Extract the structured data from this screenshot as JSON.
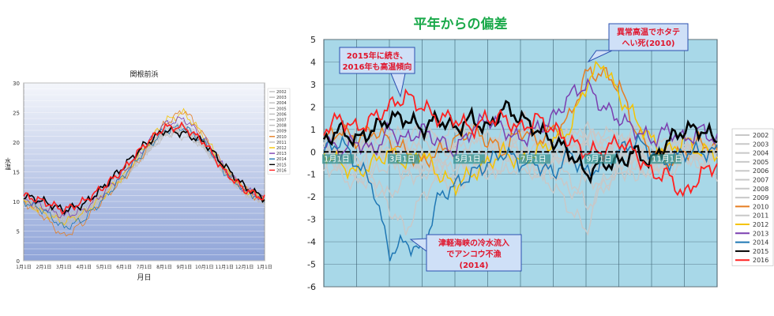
{
  "chart_data": [
    {
      "type": "line",
      "title": "関根前浜",
      "xlabel": "月日",
      "ylabel": "水温",
      "ylim": [
        0,
        30
      ],
      "yticks": [
        "0",
        "5",
        "10",
        "15",
        "20",
        "25",
        "30"
      ],
      "xticks": [
        "1月1日",
        "2月1日",
        "3月1日",
        "4月1日",
        "5月1日",
        "6月1日",
        "7月1日",
        "8月1日",
        "9月1日",
        "10月1日",
        "11月1日",
        "12月1日",
        "1月1日"
      ],
      "grid": true,
      "legend_position": "right",
      "series": [
        {
          "name": "2002",
          "color": "#bdbdbd",
          "values": [
            10,
            9,
            7.5,
            8.5,
            11,
            14,
            18,
            21,
            22.5,
            20,
            15,
            11.5,
            10
          ]
        },
        {
          "name": "2003",
          "color": "#bdbdbd",
          "values": [
            10.5,
            8.5,
            6,
            8,
            11,
            14.5,
            18.5,
            21.5,
            21,
            19.5,
            15.5,
            12,
            10.5
          ]
        },
        {
          "name": "2004",
          "color": "#bdbdbd",
          "values": [
            10,
            9,
            7,
            8.5,
            12,
            15,
            19,
            23,
            23,
            20,
            15,
            12,
            10.5
          ]
        },
        {
          "name": "2005",
          "color": "#bdbdbd",
          "values": [
            10,
            8.5,
            6.5,
            8,
            11.5,
            14.5,
            18,
            22,
            22.5,
            19.5,
            15,
            11.5,
            10
          ]
        },
        {
          "name": "2006",
          "color": "#bdbdbd",
          "values": [
            10.5,
            9,
            7,
            8,
            11,
            14,
            18,
            21.5,
            23,
            20,
            15.5,
            12,
            10.5
          ]
        },
        {
          "name": "2007",
          "color": "#bdbdbd",
          "values": [
            10,
            8.5,
            7,
            8.5,
            11.5,
            15,
            18.5,
            22,
            22,
            19.5,
            15,
            12,
            10
          ]
        },
        {
          "name": "2008",
          "color": "#bdbdbd",
          "values": [
            10,
            8,
            6.5,
            8,
            11,
            14.5,
            18,
            21.5,
            22.5,
            19.5,
            15,
            11.5,
            10
          ]
        },
        {
          "name": "2009",
          "color": "#bdbdbd",
          "values": [
            10.5,
            9,
            7.5,
            8.5,
            11.5,
            14.5,
            18.5,
            22,
            22,
            19.5,
            15.5,
            12,
            10.5
          ]
        },
        {
          "name": "2010",
          "color": "#e67e22",
          "values": [
            10,
            7.5,
            4,
            6.5,
            10.5,
            14,
            18,
            23,
            25.5,
            21,
            15.5,
            12,
            10
          ]
        },
        {
          "name": "2011",
          "color": "#bdbdbd",
          "values": [
            10,
            8,
            6,
            7.5,
            11,
            14,
            18,
            22,
            22,
            19,
            15,
            11.5,
            10
          ]
        },
        {
          "name": "2012",
          "color": "#f5c400",
          "values": [
            10,
            8,
            6.5,
            8,
            11,
            14.5,
            19,
            23.5,
            25,
            21,
            15.5,
            12,
            10.5
          ]
        },
        {
          "name": "2013",
          "color": "#7b3fb0",
          "values": [
            10.5,
            9,
            7.5,
            8.5,
            11.5,
            15,
            19,
            23,
            24,
            20.5,
            15.5,
            12,
            10.5
          ]
        },
        {
          "name": "2014",
          "color": "#1f77b4",
          "values": [
            10,
            8.5,
            5.5,
            7,
            10.5,
            14.5,
            18.5,
            22,
            22.5,
            20,
            15,
            12,
            10
          ]
        },
        {
          "name": "2015",
          "color": "#000000",
          "values": [
            11,
            10,
            8.5,
            9.5,
            12.5,
            16,
            19.5,
            22,
            21.5,
            20,
            16,
            12.5,
            10.5
          ]
        },
        {
          "name": "2016",
          "color": "#ff2020",
          "values": [
            11,
            10,
            8.5,
            10,
            12.5,
            15.5,
            19.5,
            22.5,
            22.5,
            20,
            15,
            12,
            10.5
          ]
        }
      ]
    },
    {
      "type": "line",
      "title": "平年からの偏差",
      "xlabel": "",
      "ylabel": "",
      "ylim": [
        -6,
        5
      ],
      "yticks": [
        "5",
        "4",
        "3",
        "2",
        "1",
        "0",
        "-1",
        "-2",
        "-3",
        "-4",
        "-5",
        "-6"
      ],
      "xticks": [
        "1月1日",
        "3月1日",
        "5月1日",
        "7月1日",
        "9月1日",
        "11月1日"
      ],
      "grid": true,
      "legend_position": "right",
      "annotations": [
        {
          "id": "ann1",
          "text": [
            "2015年に続き、",
            "2016年も高温傾向"
          ]
        },
        {
          "id": "ann2",
          "text": [
            "異常高温でホタテ",
            "へい死(2010)"
          ]
        },
        {
          "id": "ann3",
          "text": [
            "津軽海峡の冷水流入",
            "でアンコウ不漁",
            "(2014)"
          ]
        }
      ],
      "series": [
        {
          "name": "2002",
          "color": "#c8c8c8",
          "values": [
            0,
            -0.5,
            -1,
            -1.5,
            -2,
            -1,
            -1,
            -0.5,
            -1,
            -0.5,
            -1,
            0,
            -0.5,
            -1,
            -0.5,
            0,
            0.5,
            0.5,
            -0.5,
            -1,
            -0.5,
            -1,
            -0.5,
            0.5,
            0
          ]
        },
        {
          "name": "2003",
          "color": "#c8c8c8",
          "values": [
            0.5,
            1,
            0.5,
            -1,
            -2.5,
            -3.5,
            -2,
            -1,
            -1.5,
            -1,
            -0.5,
            0.5,
            0,
            -1,
            -0.5,
            -2,
            -1,
            -1.5,
            -0.5,
            0,
            -0.5,
            -1,
            0,
            0.5,
            0
          ]
        },
        {
          "name": "2004",
          "color": "#c8c8c8",
          "values": [
            0,
            0.5,
            1,
            0.5,
            0,
            0.5,
            1,
            0.5,
            1,
            1,
            0.5,
            1,
            1.5,
            1,
            0.5,
            1,
            0.5,
            0,
            0.5,
            1,
            0.5,
            0,
            0.5,
            0,
            0.5
          ]
        },
        {
          "name": "2005",
          "color": "#c8c8c8",
          "values": [
            -0.5,
            0,
            -0.5,
            0.5,
            0,
            -0.5,
            0,
            -1,
            -0.5,
            0,
            -0.5,
            0,
            -0.5,
            0,
            0.5,
            0,
            -1,
            -0.5,
            0,
            0.5,
            0,
            -0.5,
            0,
            0,
            0
          ]
        },
        {
          "name": "2006",
          "color": "#c8c8c8",
          "values": [
            0.5,
            0,
            0.5,
            0,
            -0.5,
            0,
            0.5,
            0,
            0,
            0.5,
            0,
            0.5,
            0,
            1,
            0,
            0.5,
            1,
            0.5,
            0,
            -0.5,
            0,
            0.5,
            0,
            -0.5,
            0
          ]
        },
        {
          "name": "2007",
          "color": "#c8c8c8",
          "values": [
            0,
            -0.5,
            0,
            0.5,
            1,
            0.5,
            0,
            0.5,
            0,
            -0.5,
            0,
            0.5,
            1,
            0.5,
            0,
            -0.5,
            0.5,
            0,
            0.5,
            0,
            -0.5,
            0,
            0.5,
            0,
            0
          ]
        },
        {
          "name": "2008",
          "color": "#c8c8c8",
          "values": [
            -0.5,
            -1,
            -1.5,
            -1,
            -0.5,
            -1,
            -0.5,
            -1,
            -1.5,
            -1,
            -0.5,
            -1,
            -0.5,
            -1,
            -1.5,
            -2.5,
            -3.5,
            -1.5,
            -1,
            -0.5,
            -1,
            -0.5,
            0,
            -0.5,
            -1
          ]
        },
        {
          "name": "2009",
          "color": "#c8c8c8",
          "values": [
            0.5,
            0,
            -0.5,
            0,
            0.5,
            0,
            -0.5,
            0,
            0.5,
            1,
            0.5,
            0,
            0.5,
            0,
            -0.5,
            0,
            0.5,
            1,
            0.5,
            0,
            -0.5,
            0,
            0.5,
            0,
            0
          ]
        },
        {
          "name": "2010",
          "color": "#e67e22",
          "values": [
            0.5,
            1,
            0.5,
            1,
            0.5,
            0,
            -0.5,
            0,
            0.5,
            1,
            0.5,
            0,
            1,
            0.5,
            1,
            1.5,
            3.5,
            3.5,
            3,
            1,
            0,
            -0.5,
            0,
            0.5,
            0
          ]
        },
        {
          "name": "2011",
          "color": "#c8c8c8",
          "values": [
            0,
            -0.5,
            -1,
            -0.5,
            0,
            -0.5,
            -1,
            -0.5,
            0,
            -0.5,
            -1,
            -0.5,
            0,
            -0.5,
            -1,
            -1,
            -2.5,
            -1.5,
            -1,
            -0.5,
            -1,
            -0.5,
            0,
            -0.5,
            0
          ]
        },
        {
          "name": "2012",
          "color": "#f5c400",
          "values": [
            0,
            -0.5,
            -1,
            -0.5,
            0,
            -0.5,
            0,
            -1,
            -1.5,
            -1,
            -0.5,
            0,
            -0.5,
            0,
            0.5,
            1,
            3,
            4,
            2.5,
            1.5,
            0.5,
            0,
            0.5,
            0,
            0
          ]
        },
        {
          "name": "2013",
          "color": "#7b3fb0",
          "values": [
            0.5,
            0,
            0.5,
            0,
            1,
            0.5,
            1,
            0.5,
            0,
            1,
            1.5,
            1,
            0.5,
            1,
            1.5,
            2.5,
            3,
            2,
            1.5,
            1,
            0.5,
            1,
            0.5,
            1,
            0.5
          ]
        },
        {
          "name": "2014",
          "color": "#1f77b4",
          "values": [
            0,
            0.5,
            -0.5,
            -1.5,
            -4.5,
            -4,
            -4.5,
            -2,
            -1.5,
            -1,
            -0.5,
            0,
            -0.5,
            -0.5,
            -1,
            0,
            -1,
            -0.5,
            0,
            0.5,
            0,
            -0.5,
            0,
            0,
            0
          ]
        },
        {
          "name": "2015",
          "color": "#000000",
          "values": [
            0.5,
            1,
            0.5,
            1,
            1.5,
            1.5,
            1,
            1.5,
            1,
            1.5,
            1,
            2,
            1.5,
            1,
            0.5,
            0,
            -1,
            -0.5,
            -0.5,
            0,
            -0.5,
            0.5,
            1,
            1,
            0.5
          ]
        },
        {
          "name": "2016",
          "color": "#ff2020",
          "values": [
            1,
            1.5,
            1,
            1.5,
            2,
            2.5,
            2,
            1.5,
            1.5,
            1,
            1.5,
            1.5,
            1,
            1.5,
            1,
            0.5,
            0,
            0,
            0.5,
            0,
            -1,
            -1,
            -2,
            -1,
            -0.5
          ]
        }
      ]
    }
  ]
}
